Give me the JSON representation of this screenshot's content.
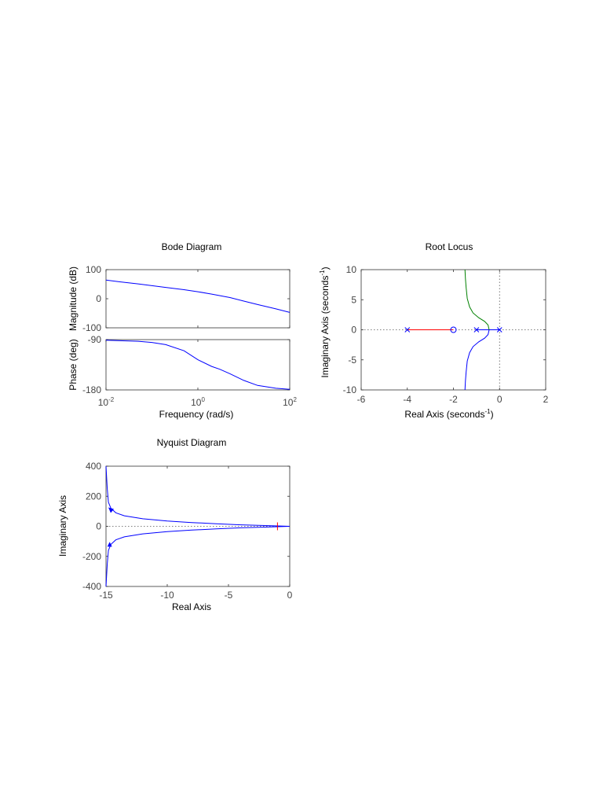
{
  "chart_data": [
    {
      "type": "line",
      "title": "Bode Diagram",
      "xlabel": "Frequency  (rad/s)",
      "x_scale": "log",
      "xlim": [
        0.01,
        100
      ],
      "x_ticks": [
        {
          "value": 0.01,
          "base": "10",
          "exp": "-2"
        },
        {
          "value": 1,
          "base": "10",
          "exp": "0"
        },
        {
          "value": 100,
          "base": "10",
          "exp": "2"
        }
      ],
      "panels": [
        {
          "ylabel": "Magnitude (dB)",
          "ylim": [
            -100,
            100
          ],
          "y_ticks": [
            "100",
            "0",
            "-100"
          ],
          "color": "#0000ff",
          "series": [
            {
              "x": [
                0.01,
                0.02,
                0.05,
                0.1,
                0.2,
                0.5,
                1,
                2,
                5,
                10,
                20,
                50,
                100
              ],
              "y": [
                64,
                58,
                51,
                45,
                39,
                31,
                24,
                16,
                4,
                -8,
                -20,
                -35,
                -47
              ]
            }
          ]
        },
        {
          "ylabel": "Phase (deg)",
          "ylim": [
            -180,
            -90
          ],
          "y_ticks": [
            "-90",
            "-180"
          ],
          "color": "#0000ff",
          "series": [
            {
              "x": [
                0.01,
                0.02,
                0.05,
                0.1,
                0.2,
                0.5,
                1,
                2,
                3,
                5,
                10,
                20,
                50,
                100
              ],
              "y": [
                -91,
                -92,
                -93,
                -95,
                -99,
                -110,
                -126,
                -138,
                -143,
                -151,
                -163,
                -172,
                -177,
                -179
              ]
            }
          ]
        }
      ]
    },
    {
      "type": "line",
      "title": "Root Locus",
      "xlabel": "Real Axis (seconds",
      "xlabel_sup": "-1",
      "xlabel_end": ")",
      "ylabel": "Imaginary Axis (seconds",
      "ylabel_sup": "-1",
      "ylabel_end": ")",
      "xlim": [
        -6,
        2
      ],
      "ylim": [
        -10,
        10
      ],
      "x_ticks": [
        "-6",
        "-4",
        "-2",
        "0",
        "2"
      ],
      "y_ticks": [
        "10",
        "5",
        "0",
        "-5",
        "-10"
      ],
      "series": [
        {
          "color": "#ff0000",
          "x": [
            -4,
            -2
          ],
          "y": [
            0,
            0
          ]
        },
        {
          "color": "#0000ff",
          "x": [
            -1,
            -0.85,
            -0.7,
            -0.6,
            -0.45
          ],
          "y": [
            0,
            0,
            0,
            0,
            0
          ]
        },
        {
          "color": "#0000ff",
          "x": [
            0,
            -0.45
          ],
          "y": [
            0,
            0
          ]
        },
        {
          "color": "#008000",
          "x": [
            -0.45,
            -0.5,
            -0.65,
            -0.9,
            -1.15,
            -1.3,
            -1.4,
            -1.45,
            -1.48,
            -1.5
          ],
          "y": [
            0,
            0.8,
            1.4,
            2.0,
            2.8,
            3.8,
            5.2,
            7.0,
            8.5,
            10
          ]
        },
        {
          "color": "#0000ff",
          "x": [
            -0.45,
            -0.5,
            -0.65,
            -0.9,
            -1.15,
            -1.3,
            -1.4,
            -1.45,
            -1.48,
            -1.5
          ],
          "y": [
            0,
            -0.8,
            -1.4,
            -2.0,
            -2.8,
            -3.8,
            -5.2,
            -7.0,
            -8.5,
            -10
          ]
        }
      ],
      "poles": [
        {
          "x": -4,
          "y": 0
        },
        {
          "x": -1,
          "y": 0
        },
        {
          "x": 0,
          "y": 0
        }
      ],
      "zeros": [
        {
          "x": -2,
          "y": 0
        }
      ]
    },
    {
      "type": "line",
      "title": "Nyquist Diagram",
      "xlabel": "Real Axis",
      "ylabel": "Imaginary Axis",
      "xlim": [
        -15,
        0
      ],
      "ylim": [
        -400,
        400
      ],
      "x_ticks": [
        "-15",
        "-10",
        "-5",
        "0"
      ],
      "y_ticks": [
        "400",
        "200",
        "0",
        "-200",
        "-400"
      ],
      "series": [
        {
          "color": "#0000ff",
          "x": [
            -15,
            -14.9,
            -14.8,
            -14.6,
            -14.2,
            -13.5,
            -12,
            -10,
            -8,
            -6,
            -4,
            -2,
            -0.5,
            0
          ],
          "y": [
            400,
            250,
            160,
            120,
            90,
            70,
            50,
            35,
            25,
            17,
            10,
            5,
            1,
            0
          ]
        },
        {
          "color": "#0000ff",
          "x": [
            -15,
            -14.9,
            -14.8,
            -14.6,
            -14.2,
            -13.5,
            -12,
            -10,
            -8,
            -6,
            -4,
            -2,
            -0.5,
            0
          ],
          "y": [
            -400,
            -250,
            -160,
            -120,
            -90,
            -70,
            -50,
            -35,
            -25,
            -17,
            -10,
            -5,
            -1,
            0
          ]
        }
      ],
      "arrows": [
        {
          "x": -14.55,
          "y": 110,
          "direction": "up-left"
        },
        {
          "x": -14.7,
          "y": -125,
          "direction": "up"
        }
      ],
      "critical_point": {
        "x": -1,
        "y": 0,
        "color": "#ff0000"
      }
    }
  ]
}
